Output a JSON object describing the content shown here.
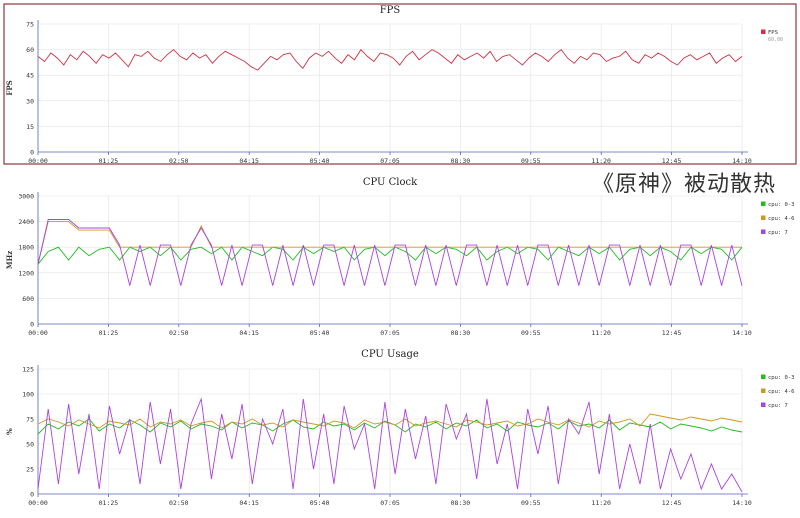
{
  "overlay_caption": "《原神》被动散热",
  "chart_data": [
    {
      "type": "line",
      "title": "FPS",
      "ylabel": "FPS",
      "xlabel": "",
      "x_ticks": [
        "00:00",
        "01:25",
        "02:50",
        "04:15",
        "05:40",
        "07:05",
        "08:30",
        "09:55",
        "11:20",
        "12:45",
        "14:10"
      ],
      "y_ticks": [
        0,
        15,
        30,
        45,
        60,
        75
      ],
      "ylim": [
        0,
        75
      ],
      "grid": true,
      "legend_position": "top-right",
      "series": [
        {
          "name": "FPS",
          "sublabel": "60.00",
          "color": "#cc3344",
          "values": [
            56,
            53,
            58,
            55,
            51,
            57,
            54,
            59,
            56,
            52,
            57,
            55,
            58,
            54,
            50,
            57,
            56,
            59,
            55,
            53,
            57,
            60,
            56,
            54,
            58,
            55,
            57,
            52,
            56,
            59,
            57,
            55,
            53,
            50,
            48,
            52,
            56,
            54,
            57,
            58,
            53,
            49,
            55,
            58,
            56,
            59,
            55,
            52,
            57,
            54,
            60,
            56,
            53,
            58,
            57,
            55,
            51,
            56,
            59,
            54,
            57,
            60,
            58,
            55,
            52,
            57,
            54,
            56,
            58,
            55,
            59,
            53,
            56,
            57,
            54,
            51,
            55,
            58,
            56,
            53,
            57,
            60,
            55,
            52,
            56,
            54,
            58,
            57,
            53,
            55,
            56,
            59,
            54,
            52,
            57,
            55,
            58,
            56,
            53,
            51,
            55,
            57,
            54,
            56,
            58,
            52,
            55,
            57,
            53,
            56
          ]
        }
      ]
    },
    {
      "type": "line",
      "title": "CPU Clock",
      "ylabel": "MHz",
      "xlabel": "",
      "x_ticks": [
        "00:00",
        "01:25",
        "02:50",
        "04:15",
        "05:40",
        "07:05",
        "08:30",
        "09:55",
        "11:20",
        "12:45",
        "14:10"
      ],
      "y_ticks": [
        0,
        600,
        1200,
        1800,
        2400,
        3000
      ],
      "ylim": [
        0,
        3000
      ],
      "grid": true,
      "legend_position": "top-right",
      "series": [
        {
          "name": "cpu: 0-3",
          "color": "#22bb22",
          "values": [
            1400,
            1700,
            1800,
            1500,
            1800,
            1600,
            1750,
            1800,
            1500,
            1800,
            1700,
            1800,
            1600,
            1800,
            1500,
            1750,
            1800,
            1650,
            1800,
            1500,
            1800,
            1700,
            1600,
            1800,
            1750,
            1500,
            1800,
            1650,
            1800,
            1700,
            1800,
            1500,
            1750,
            1800,
            1600,
            1800,
            1700,
            1500,
            1800,
            1650,
            1800,
            1750,
            1600,
            1800,
            1500,
            1700,
            1800,
            1650,
            1800,
            1750,
            1500,
            1800,
            1700,
            1600,
            1800,
            1650,
            1800,
            1500,
            1750,
            1800,
            1600,
            1800,
            1700,
            1500,
            1800,
            1650,
            1800,
            1750,
            1500,
            1800
          ]
        },
        {
          "name": "cpu: 4-6",
          "color": "#cc9922",
          "values": [
            1400,
            2400,
            2400,
            2400,
            2200,
            2200,
            2200,
            2200,
            1800,
            1800,
            1800,
            1800,
            1800,
            1800,
            1800,
            1800,
            2300,
            1800,
            1800,
            1800,
            1800,
            1800,
            1800,
            1800,
            1800,
            1800,
            1800,
            1800,
            1800,
            1800,
            1800,
            1800,
            1800,
            1800,
            1800,
            1800,
            1800,
            1800,
            1800,
            1800,
            1800,
            1800,
            1800,
            1800,
            1800,
            1800,
            1800,
            1800,
            1800,
            1800,
            1800,
            1800,
            1800,
            1800,
            1800,
            1800,
            1800,
            1800,
            1800,
            1800,
            1800,
            1800,
            1800,
            1800,
            1800,
            1800,
            1800,
            1800,
            1800,
            1800
          ]
        },
        {
          "name": "cpu: 7",
          "color": "#aa44dd",
          "values": [
            1400,
            2450,
            2450,
            2450,
            2250,
            2250,
            2250,
            2250,
            1850,
            900,
            1850,
            900,
            1850,
            1850,
            900,
            1850,
            2250,
            1850,
            900,
            1850,
            900,
            1850,
            1850,
            900,
            1850,
            900,
            1850,
            900,
            1850,
            1850,
            900,
            1850,
            900,
            1850,
            900,
            1850,
            1850,
            900,
            1850,
            900,
            1850,
            900,
            1850,
            1850,
            900,
            1850,
            900,
            1850,
            900,
            1850,
            1850,
            900,
            1850,
            900,
            1850,
            900,
            1850,
            1850,
            900,
            1850,
            900,
            1850,
            900,
            1850,
            1850,
            900,
            1850,
            900,
            1850,
            900
          ]
        }
      ]
    },
    {
      "type": "line",
      "title": "CPU Usage",
      "ylabel": "%",
      "xlabel": "",
      "x_ticks": [
        "00:00",
        "01:25",
        "02:50",
        "04:15",
        "05:40",
        "07:05",
        "08:30",
        "09:55",
        "11:20",
        "12:45",
        "14:10"
      ],
      "y_ticks": [
        0,
        25,
        50,
        75,
        100,
        125
      ],
      "ylim": [
        0,
        125
      ],
      "grid": true,
      "legend_position": "top-right",
      "series": [
        {
          "name": "cpu: 0-3",
          "color": "#22bb22",
          "values": [
            60,
            70,
            65,
            72,
            68,
            75,
            63,
            70,
            66,
            74,
            69,
            62,
            71,
            67,
            73,
            65,
            70,
            68,
            64,
            72,
            66,
            71,
            69,
            63,
            70,
            74,
            67,
            65,
            72,
            68,
            70,
            64,
            71,
            66,
            73,
            69,
            62,
            70,
            67,
            72,
            65,
            71,
            68,
            74,
            66,
            70,
            63,
            72,
            69,
            67,
            71,
            65,
            73,
            68,
            70,
            66,
            74,
            64,
            71,
            69,
            67,
            72,
            65,
            70,
            68,
            66,
            63,
            67,
            64,
            62
          ]
        },
        {
          "name": "cpu: 4-6",
          "color": "#cc9922",
          "values": [
            70,
            75,
            72,
            68,
            74,
            70,
            66,
            73,
            71,
            69,
            75,
            67,
            72,
            70,
            74,
            68,
            71,
            73,
            66,
            72,
            70,
            75,
            69,
            71,
            67,
            74,
            72,
            70,
            68,
            73,
            71,
            66,
            74,
            70,
            72,
            69,
            75,
            68,
            71,
            73,
            70,
            67,
            74,
            72,
            69,
            71,
            73,
            68,
            70,
            75,
            72,
            69,
            74,
            71,
            67,
            73,
            70,
            72,
            75,
            68,
            80,
            78,
            76,
            74,
            77,
            75,
            73,
            76,
            74,
            72
          ]
        },
        {
          "name": "cpu: 7",
          "color": "#aa44dd",
          "values": [
            5,
            85,
            10,
            90,
            20,
            80,
            5,
            88,
            40,
            75,
            10,
            92,
            30,
            85,
            5,
            70,
            95,
            15,
            80,
            35,
            90,
            10,
            75,
            50,
            85,
            5,
            95,
            25,
            80,
            10,
            88,
            45,
            70,
            5,
            92,
            20,
            85,
            35,
            78,
            10,
            90,
            55,
            80,
            15,
            95,
            30,
            70,
            5,
            85,
            40,
            88,
            10,
            75,
            60,
            92,
            20,
            80,
            5,
            50,
            10,
            70,
            5,
            45,
            15,
            40,
            5,
            30,
            5,
            20,
            2
          ]
        }
      ]
    }
  ]
}
